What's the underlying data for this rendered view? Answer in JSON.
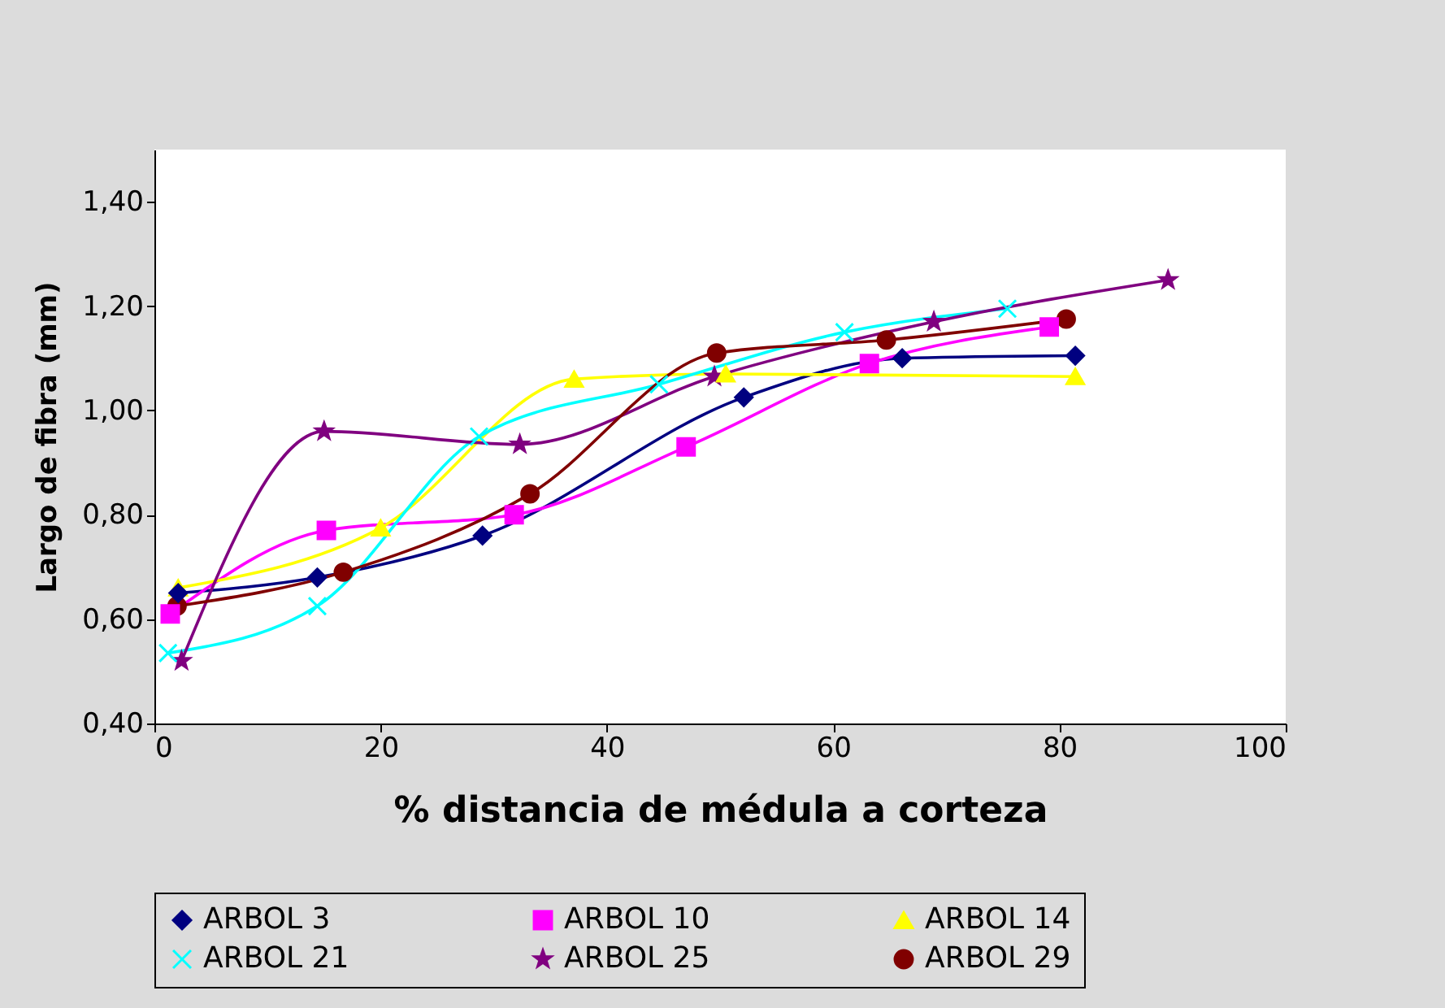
{
  "chart_data": {
    "type": "line",
    "xlabel": "% distancia de médula a corteza",
    "ylabel": "Largo de fibra (mm)",
    "xlim": [
      0,
      100
    ],
    "xticks": [
      0,
      20,
      40,
      60,
      80,
      100
    ],
    "ylim": [
      0.4,
      1.5
    ],
    "yticks": [
      {
        "value": 0.4,
        "label": "0,40"
      },
      {
        "value": 0.6,
        "label": "0,60"
      },
      {
        "value": 0.8,
        "label": "0,80"
      },
      {
        "value": 1.0,
        "label": "1,00"
      },
      {
        "value": 1.2,
        "label": "1,20"
      },
      {
        "value": 1.4,
        "label": "1,40"
      }
    ],
    "grid": false,
    "legend": "bottom",
    "series": [
      {
        "name": "ARBOL 3",
        "color": "#000080",
        "marker": "diamond",
        "x": [
          2.1,
          14.4,
          29,
          52.1,
          66.1,
          81.4
        ],
        "values": [
          0.65,
          0.68,
          0.76,
          1.025,
          1.1,
          1.105
        ]
      },
      {
        "name": "ARBOL 10",
        "color": "#ff00ff",
        "marker": "square",
        "x": [
          1.4,
          15.2,
          31.8,
          47,
          63.2,
          79.1
        ],
        "values": [
          0.61,
          0.77,
          0.8,
          0.93,
          1.09,
          1.16
        ]
      },
      {
        "name": "ARBOL 14",
        "color": "#ffff00",
        "marker": "triangle",
        "x": [
          2.1,
          20,
          37.1,
          50.5,
          81.4
        ],
        "values": [
          0.66,
          0.775,
          1.06,
          1.07,
          1.065
        ]
      },
      {
        "name": "ARBOL 21",
        "color": "#00ffff",
        "marker": "cross",
        "x": [
          1.2,
          14.4,
          28.7,
          44.6,
          61,
          75.4
        ],
        "values": [
          0.535,
          0.625,
          0.95,
          1.05,
          1.15,
          1.195
        ]
      },
      {
        "name": "ARBOL 25",
        "color": "#800080",
        "marker": "star",
        "x": [
          2.4,
          15,
          32.3,
          49.5,
          68.9,
          89.6
        ],
        "values": [
          0.52,
          0.96,
          0.935,
          1.065,
          1.17,
          1.25
        ]
      },
      {
        "name": "ARBOL 29",
        "color": "#800000",
        "marker": "circle",
        "x": [
          2,
          16.7,
          33.2,
          49.7,
          64.7,
          80.6
        ],
        "values": [
          0.625,
          0.69,
          0.84,
          1.11,
          1.135,
          1.175
        ]
      }
    ]
  }
}
